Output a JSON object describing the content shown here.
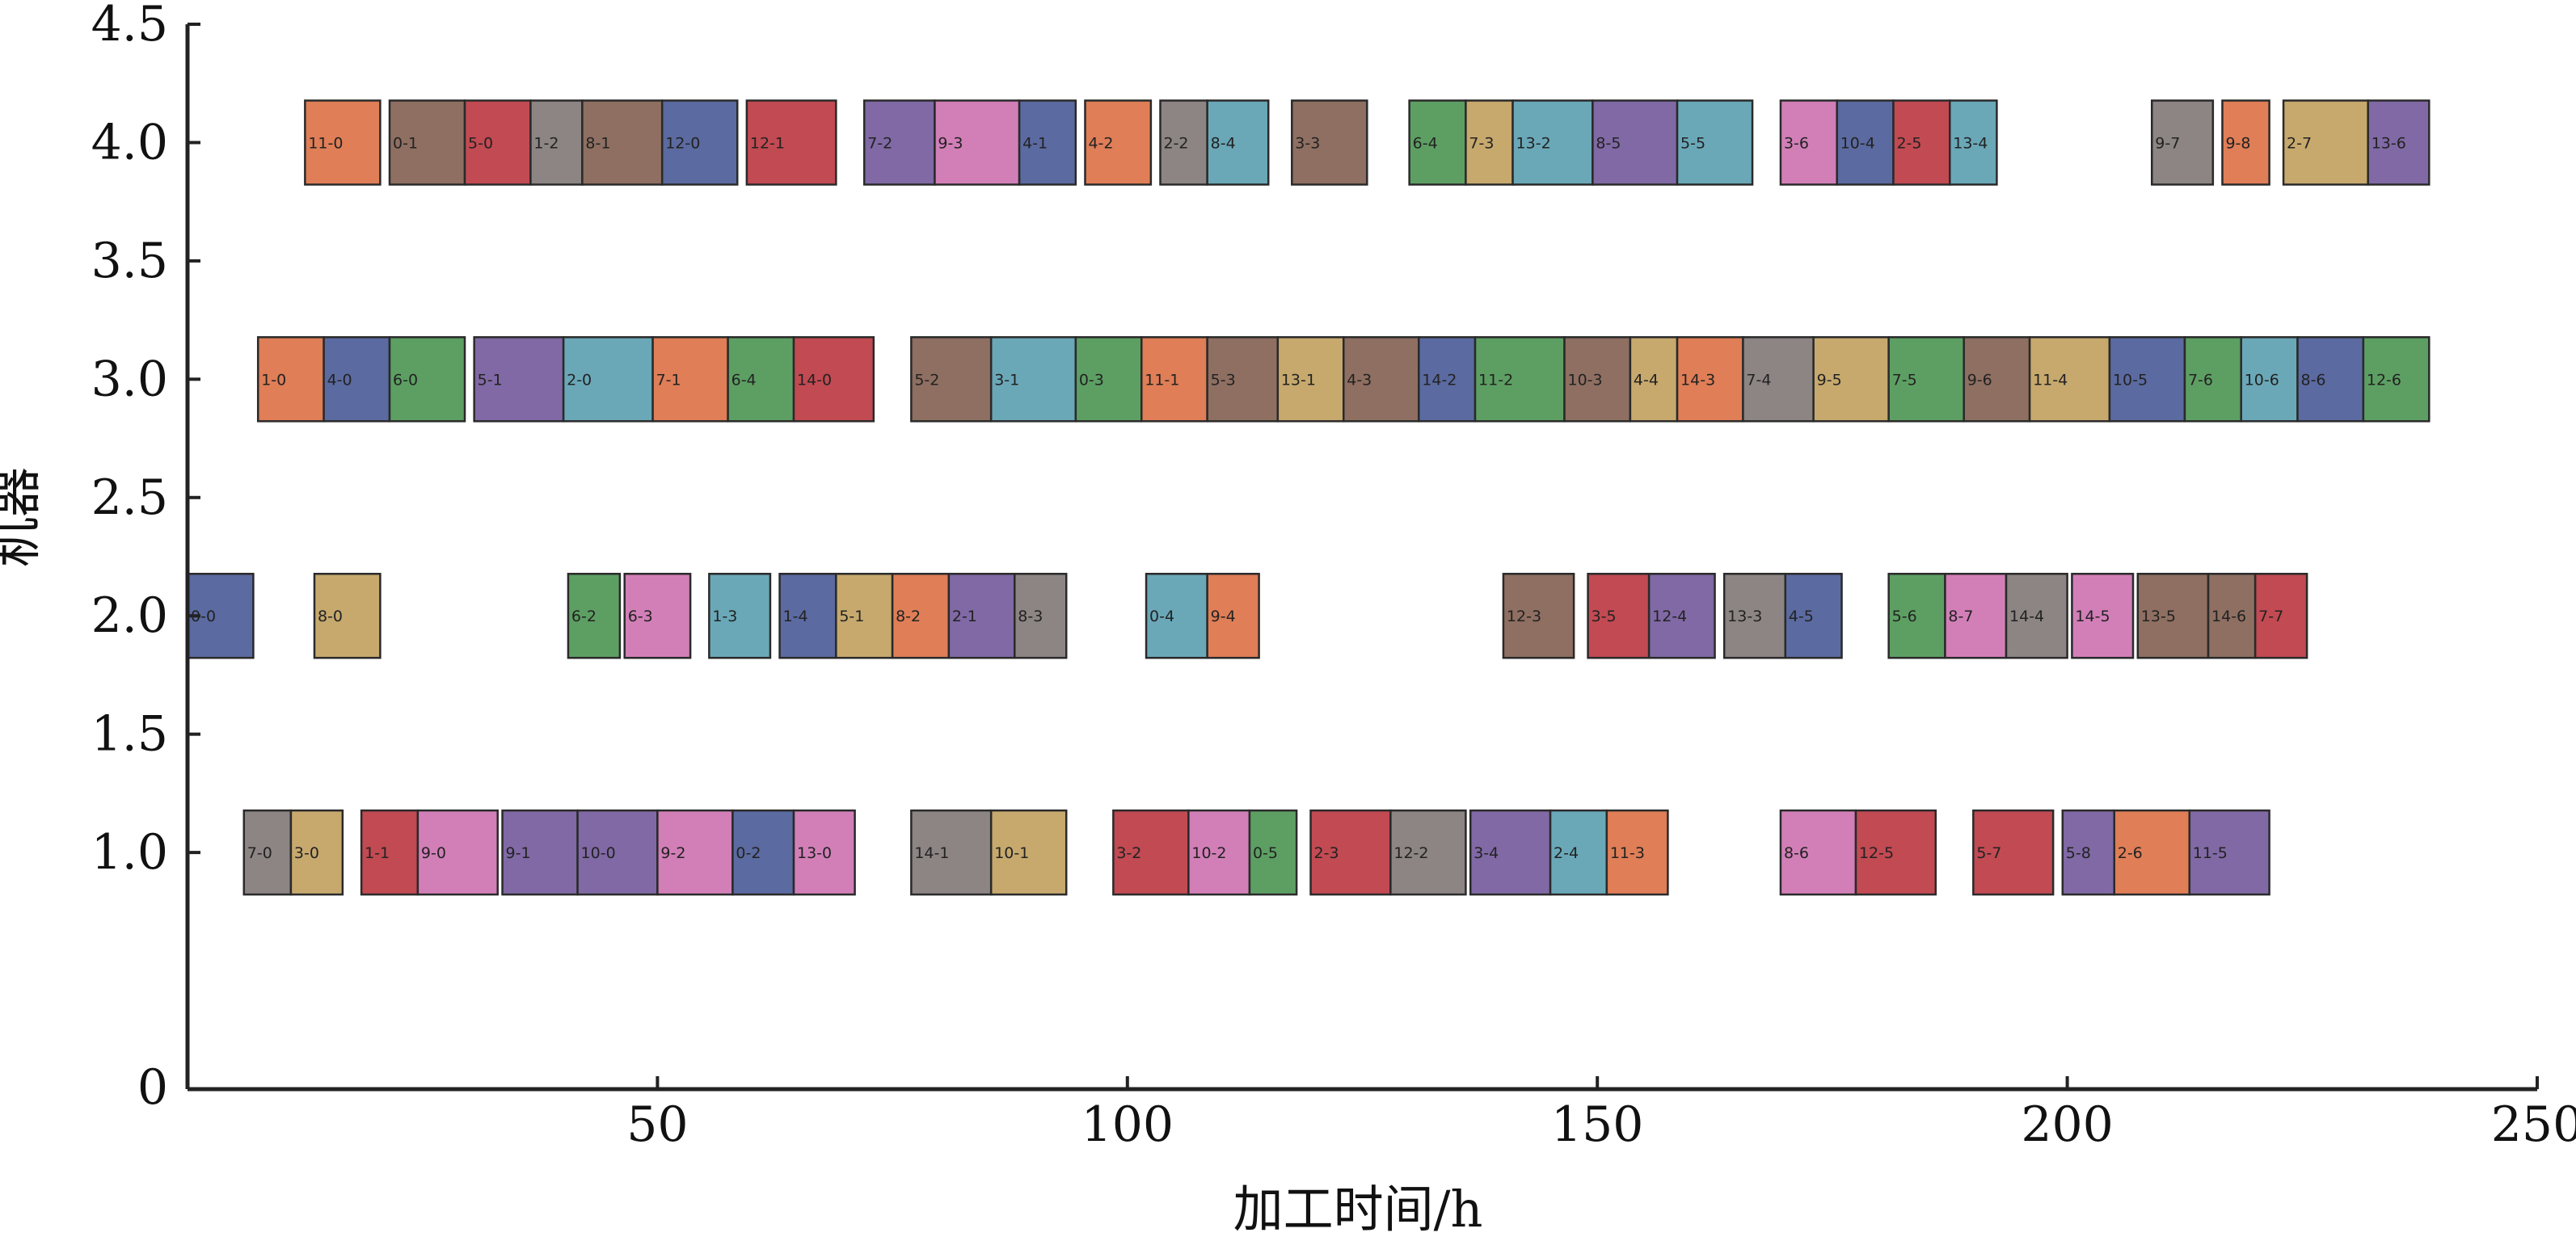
{
  "colors": {
    "blue": "#5b6aa0",
    "orange": "#df7e57",
    "green": "#5d9f63",
    "red": "#c24a52",
    "purple": "#8069a5",
    "brown": "#8e6f61",
    "pink": "#d27fb8",
    "gray": "#8c8584",
    "tan": "#c7a96e",
    "teal": "#6aa8b8"
  },
  "chart_data": {
    "type": "gantt",
    "xlabel": "加工时间/h",
    "ylabel": "机器",
    "xlim": [
      0,
      250
    ],
    "ylim": [
      0,
      4.5
    ],
    "x_ticks": [
      "50",
      "100",
      "150",
      "200",
      "250"
    ],
    "y_ticks": [
      "0",
      "1.0",
      "1.5",
      "2.0",
      "2.5",
      "3.0",
      "3.5",
      "4.0",
      "4.5"
    ],
    "grid": false,
    "machines": [
      {
        "machine": 4.0,
        "tasks": [
          {
            "label": "11-0",
            "start": 12.5,
            "end": 20.5,
            "color": "orange"
          },
          {
            "label": "0-1",
            "start": 21.5,
            "end": 29.5,
            "color": "brown"
          },
          {
            "label": "5-0",
            "start": 29.5,
            "end": 36.5,
            "color": "red"
          },
          {
            "label": "1-2",
            "start": 36.5,
            "end": 42.0,
            "color": "gray"
          },
          {
            "label": "8-1",
            "start": 42.0,
            "end": 50.5,
            "color": "brown"
          },
          {
            "label": "12-0",
            "start": 50.5,
            "end": 58.5,
            "color": "blue"
          },
          {
            "label": "12-1",
            "start": 59.5,
            "end": 69.0,
            "color": "red"
          },
          {
            "label": "7-2",
            "start": 72.0,
            "end": 79.5,
            "color": "purple"
          },
          {
            "label": "9-3",
            "start": 79.5,
            "end": 88.5,
            "color": "pink"
          },
          {
            "label": "4-1",
            "start": 88.5,
            "end": 94.5,
            "color": "blue"
          },
          {
            "label": "4-2",
            "start": 95.5,
            "end": 102.5,
            "color": "orange"
          },
          {
            "label": "2-2",
            "start": 103.5,
            "end": 108.5,
            "color": "gray"
          },
          {
            "label": "8-4",
            "start": 108.5,
            "end": 115.0,
            "color": "teal"
          },
          {
            "label": "3-3",
            "start": 117.5,
            "end": 125.5,
            "color": "brown"
          },
          {
            "label": "6-4",
            "start": 130.0,
            "end": 136.0,
            "color": "green"
          },
          {
            "label": "7-3",
            "start": 136.0,
            "end": 141.0,
            "color": "tan"
          },
          {
            "label": "13-2",
            "start": 141.0,
            "end": 149.5,
            "color": "teal"
          },
          {
            "label": "8-5",
            "start": 149.5,
            "end": 158.5,
            "color": "purple"
          },
          {
            "label": "5-5",
            "start": 158.5,
            "end": 166.5,
            "color": "teal"
          },
          {
            "label": "3-6",
            "start": 169.5,
            "end": 175.5,
            "color": "pink"
          },
          {
            "label": "10-4",
            "start": 175.5,
            "end": 181.5,
            "color": "blue"
          },
          {
            "label": "2-5",
            "start": 181.5,
            "end": 187.5,
            "color": "red"
          },
          {
            "label": "13-4",
            "start": 187.5,
            "end": 192.5,
            "color": "teal"
          },
          {
            "label": "9-7",
            "start": 209.0,
            "end": 215.5,
            "color": "gray"
          },
          {
            "label": "9-8",
            "start": 216.5,
            "end": 221.5,
            "color": "orange"
          },
          {
            "label": "2-7",
            "start": 223.0,
            "end": 232.0,
            "color": "tan"
          },
          {
            "label": "13-6",
            "start": 232.0,
            "end": 238.5,
            "color": "purple"
          }
        ]
      },
      {
        "machine": 3.0,
        "tasks": [
          {
            "label": "1-0",
            "start": 7.5,
            "end": 14.5,
            "color": "orange"
          },
          {
            "label": "4-0",
            "start": 14.5,
            "end": 21.5,
            "color": "blue"
          },
          {
            "label": "6-0",
            "start": 21.5,
            "end": 29.5,
            "color": "green"
          },
          {
            "label": "5-1",
            "start": 30.5,
            "end": 40.0,
            "color": "purple"
          },
          {
            "label": "2-0",
            "start": 40.0,
            "end": 49.5,
            "color": "teal"
          },
          {
            "label": "7-1",
            "start": 49.5,
            "end": 57.5,
            "color": "orange"
          },
          {
            "label": "6-4",
            "start": 57.5,
            "end": 64.5,
            "color": "green"
          },
          {
            "label": "14-0",
            "start": 64.5,
            "end": 73.0,
            "color": "red"
          },
          {
            "label": "5-2",
            "start": 77.0,
            "end": 85.5,
            "color": "brown"
          },
          {
            "label": "3-1",
            "start": 85.5,
            "end": 94.5,
            "color": "teal"
          },
          {
            "label": "0-3",
            "start": 94.5,
            "end": 101.5,
            "color": "green"
          },
          {
            "label": "11-1",
            "start": 101.5,
            "end": 108.5,
            "color": "orange"
          },
          {
            "label": "5-3",
            "start": 108.5,
            "end": 116.0,
            "color": "brown"
          },
          {
            "label": "13-1",
            "start": 116.0,
            "end": 123.0,
            "color": "tan"
          },
          {
            "label": "4-3",
            "start": 123.0,
            "end": 131.0,
            "color": "brown"
          },
          {
            "label": "14-2",
            "start": 131.0,
            "end": 137.0,
            "color": "blue"
          },
          {
            "label": "11-2",
            "start": 137.0,
            "end": 146.5,
            "color": "green"
          },
          {
            "label": "10-3",
            "start": 146.5,
            "end": 153.5,
            "color": "brown"
          },
          {
            "label": "4-4",
            "start": 153.5,
            "end": 158.5,
            "color": "tan"
          },
          {
            "label": "14-3",
            "start": 158.5,
            "end": 165.5,
            "color": "orange"
          },
          {
            "label": "7-4",
            "start": 165.5,
            "end": 173.0,
            "color": "gray"
          },
          {
            "label": "9-5",
            "start": 173.0,
            "end": 181.0,
            "color": "tan"
          },
          {
            "label": "7-5",
            "start": 181.0,
            "end": 189.0,
            "color": "green"
          },
          {
            "label": "9-6",
            "start": 189.0,
            "end": 196.0,
            "color": "brown"
          },
          {
            "label": "11-4",
            "start": 196.0,
            "end": 204.5,
            "color": "tan"
          },
          {
            "label": "10-5",
            "start": 204.5,
            "end": 212.5,
            "color": "blue"
          },
          {
            "label": "7-6",
            "start": 212.5,
            "end": 218.5,
            "color": "green"
          },
          {
            "label": "10-6",
            "start": 218.5,
            "end": 224.5,
            "color": "teal"
          },
          {
            "label": "8-6",
            "start": 224.5,
            "end": 231.5,
            "color": "blue"
          },
          {
            "label": "12-6",
            "start": 231.5,
            "end": 238.5,
            "color": "green"
          }
        ]
      },
      {
        "machine": 2.0,
        "tasks": [
          {
            "label": "0-0",
            "start": 0.0,
            "end": 7.0,
            "color": "blue"
          },
          {
            "label": "8-0",
            "start": 13.5,
            "end": 20.5,
            "color": "tan"
          },
          {
            "label": "6-2",
            "start": 40.5,
            "end": 46.0,
            "color": "green"
          },
          {
            "label": "6-3",
            "start": 46.5,
            "end": 53.5,
            "color": "pink"
          },
          {
            "label": "1-3",
            "start": 55.5,
            "end": 62.0,
            "color": "teal"
          },
          {
            "label": "1-4",
            "start": 63.0,
            "end": 69.0,
            "color": "blue"
          },
          {
            "label": "5-1",
            "start": 69.0,
            "end": 75.0,
            "color": "tan"
          },
          {
            "label": "8-2",
            "start": 75.0,
            "end": 81.0,
            "color": "orange"
          },
          {
            "label": "2-1",
            "start": 81.0,
            "end": 88.0,
            "color": "purple"
          },
          {
            "label": "8-3",
            "start": 88.0,
            "end": 93.5,
            "color": "gray"
          },
          {
            "label": "0-4",
            "start": 102.0,
            "end": 108.5,
            "color": "teal"
          },
          {
            "label": "9-4",
            "start": 108.5,
            "end": 114.0,
            "color": "orange"
          },
          {
            "label": "12-3",
            "start": 140.0,
            "end": 147.5,
            "color": "brown"
          },
          {
            "label": "3-5",
            "start": 149.0,
            "end": 155.5,
            "color": "red"
          },
          {
            "label": "12-4",
            "start": 155.5,
            "end": 162.5,
            "color": "purple"
          },
          {
            "label": "13-3",
            "start": 163.5,
            "end": 170.0,
            "color": "gray"
          },
          {
            "label": "4-5",
            "start": 170.0,
            "end": 176.0,
            "color": "blue"
          },
          {
            "label": "5-6",
            "start": 181.0,
            "end": 187.0,
            "color": "green"
          },
          {
            "label": "8-7",
            "start": 187.0,
            "end": 193.5,
            "color": "pink"
          },
          {
            "label": "14-4",
            "start": 193.5,
            "end": 200.0,
            "color": "gray"
          },
          {
            "label": "14-5",
            "start": 200.5,
            "end": 207.0,
            "color": "pink"
          },
          {
            "label": "13-5",
            "start": 207.5,
            "end": 215.0,
            "color": "brown"
          },
          {
            "label": "14-6",
            "start": 215.0,
            "end": 220.0,
            "color": "brown"
          },
          {
            "label": "7-7",
            "start": 220.0,
            "end": 225.5,
            "color": "red"
          }
        ]
      },
      {
        "machine": 1.0,
        "tasks": [
          {
            "label": "7-0",
            "start": 6.0,
            "end": 11.0,
            "color": "gray"
          },
          {
            "label": "3-0",
            "start": 11.0,
            "end": 16.5,
            "color": "tan"
          },
          {
            "label": "1-1",
            "start": 18.5,
            "end": 24.5,
            "color": "red"
          },
          {
            "label": "9-0",
            "start": 24.5,
            "end": 33.0,
            "color": "pink"
          },
          {
            "label": "9-1",
            "start": 33.5,
            "end": 41.5,
            "color": "purple"
          },
          {
            "label": "10-0",
            "start": 41.5,
            "end": 50.0,
            "color": "purple"
          },
          {
            "label": "9-2",
            "start": 50.0,
            "end": 58.0,
            "color": "pink"
          },
          {
            "label": "0-2",
            "start": 58.0,
            "end": 64.5,
            "color": "blue"
          },
          {
            "label": "13-0",
            "start": 64.5,
            "end": 71.0,
            "color": "pink"
          },
          {
            "label": "14-1",
            "start": 77.0,
            "end": 85.5,
            "color": "gray"
          },
          {
            "label": "10-1",
            "start": 85.5,
            "end": 93.5,
            "color": "tan"
          },
          {
            "label": "3-2",
            "start": 98.5,
            "end": 106.5,
            "color": "red"
          },
          {
            "label": "10-2",
            "start": 106.5,
            "end": 113.0,
            "color": "pink"
          },
          {
            "label": "0-5",
            "start": 113.0,
            "end": 118.0,
            "color": "green"
          },
          {
            "label": "2-3",
            "start": 119.5,
            "end": 128.0,
            "color": "red"
          },
          {
            "label": "12-2",
            "start": 128.0,
            "end": 136.0,
            "color": "gray"
          },
          {
            "label": "3-4",
            "start": 136.5,
            "end": 145.0,
            "color": "purple"
          },
          {
            "label": "2-4",
            "start": 145.0,
            "end": 151.0,
            "color": "teal"
          },
          {
            "label": "11-3",
            "start": 151.0,
            "end": 157.5,
            "color": "orange"
          },
          {
            "label": "8-6",
            "start": 169.5,
            "end": 177.5,
            "color": "pink"
          },
          {
            "label": "12-5",
            "start": 177.5,
            "end": 186.0,
            "color": "red"
          },
          {
            "label": "5-7",
            "start": 190.0,
            "end": 198.5,
            "color": "red"
          },
          {
            "label": "5-8",
            "start": 199.5,
            "end": 205.0,
            "color": "purple"
          },
          {
            "label": "2-6",
            "start": 205.0,
            "end": 213.0,
            "color": "orange"
          },
          {
            "label": "11-5",
            "start": 213.0,
            "end": 221.5,
            "color": "purple"
          }
        ]
      }
    ]
  }
}
